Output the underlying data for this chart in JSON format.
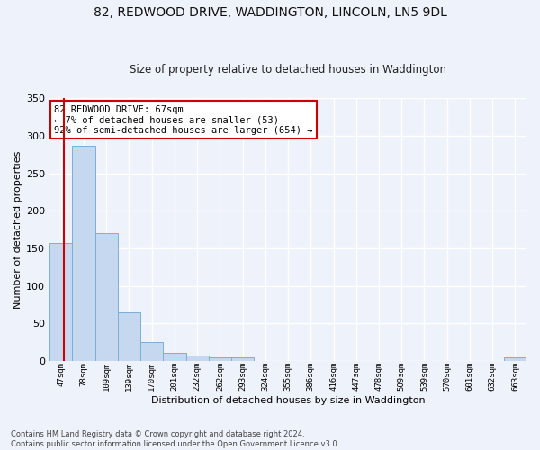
{
  "title_line1": "82, REDWOOD DRIVE, WADDINGTON, LINCOLN, LN5 9DL",
  "title_line2": "Size of property relative to detached houses in Waddington",
  "xlabel": "Distribution of detached houses by size in Waddington",
  "ylabel": "Number of detached properties",
  "categories": [
    "47sqm",
    "78sqm",
    "109sqm",
    "139sqm",
    "170sqm",
    "201sqm",
    "232sqm",
    "262sqm",
    "293sqm",
    "324sqm",
    "355sqm",
    "386sqm",
    "416sqm",
    "447sqm",
    "478sqm",
    "509sqm",
    "539sqm",
    "570sqm",
    "601sqm",
    "632sqm",
    "663sqm"
  ],
  "values": [
    157,
    287,
    170,
    65,
    25,
    10,
    7,
    5,
    4,
    0,
    0,
    0,
    0,
    0,
    0,
    0,
    0,
    0,
    0,
    0,
    4
  ],
  "bar_color": "#c5d8f0",
  "bar_edge_color": "#7bafd4",
  "vline_color": "#cc0000",
  "vline_x_index": 0,
  "annotation_text": "82 REDWOOD DRIVE: 67sqm\n← 7% of detached houses are smaller (53)\n92% of semi-detached houses are larger (654) →",
  "annotation_box_color": "#ffffff",
  "annotation_box_edge": "#cc0000",
  "ylim": [
    0,
    350
  ],
  "yticks": [
    0,
    50,
    100,
    150,
    200,
    250,
    300,
    350
  ],
  "bg_color": "#eef2fa",
  "grid_color": "#ffffff",
  "footnote": "Contains HM Land Registry data © Crown copyright and database right 2024.\nContains public sector information licensed under the Open Government Licence v3.0."
}
